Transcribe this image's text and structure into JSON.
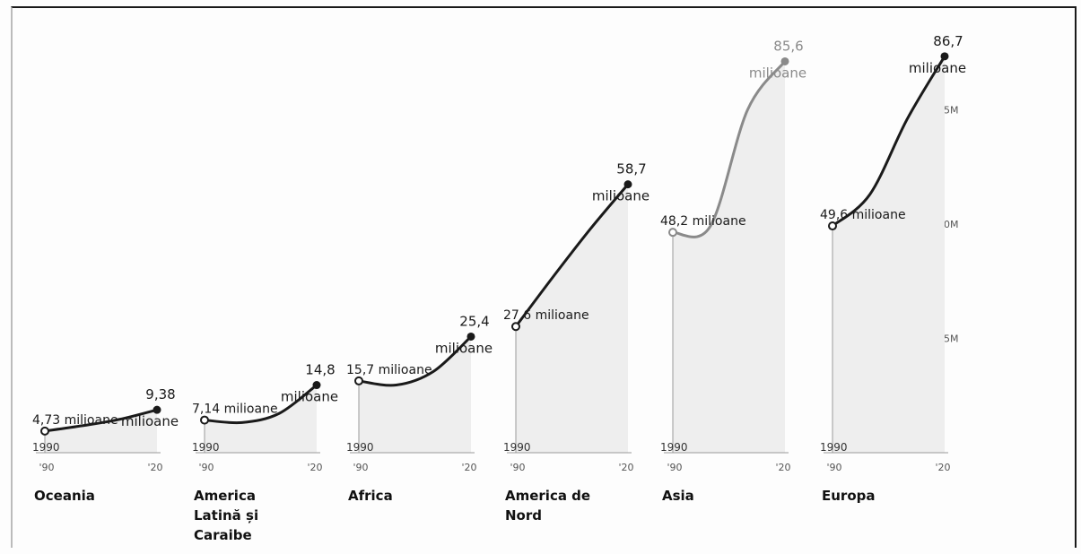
{
  "chart_data": {
    "type": "line",
    "title": "",
    "unit_word": "milioane",
    "start_year": "1990",
    "x_ticks": [
      "'90",
      "'20"
    ],
    "y_axis_ticks": [
      "75M",
      "50M",
      "25M"
    ],
    "y_range": [
      0,
      90
    ],
    "series": [
      {
        "name": "Oceania",
        "start_label": "4,73 milioane",
        "end_value_text": "9,38",
        "end_unit": "milioane",
        "x": [
          1990,
          2000,
          2010,
          2020
        ],
        "values": [
          4.73,
          5.9,
          7.3,
          9.38
        ],
        "color": "#1a1a1a"
      },
      {
        "name": "America Latină și Caraibe",
        "name_lines": [
          "America",
          "Latină și",
          "Caraibe"
        ],
        "start_label": "7,14 milioane",
        "end_value_text": "14,8",
        "end_unit": "milioane",
        "x": [
          1990,
          2000,
          2010,
          2020
        ],
        "values": [
          7.14,
          6.6,
          8.6,
          14.8
        ],
        "color": "#1a1a1a"
      },
      {
        "name": "Africa",
        "start_label": "15,7 milioane",
        "end_value_text": "25,4",
        "end_unit": "milioane",
        "x": [
          1990,
          2000,
          2010,
          2020
        ],
        "values": [
          15.7,
          14.8,
          17.8,
          25.4
        ],
        "color": "#1a1a1a"
      },
      {
        "name": "America de Nord",
        "name_lines": [
          "America de",
          "Nord"
        ],
        "start_label": "27,6 milioane",
        "end_value_text": "58,7",
        "end_unit": "milioane",
        "x": [
          1990,
          2000,
          2010,
          2020
        ],
        "values": [
          27.6,
          38.5,
          49.0,
          58.7
        ],
        "color": "#1a1a1a"
      },
      {
        "name": "Asia",
        "start_label": "48,2 milioane",
        "end_value_text": "85,6",
        "end_unit": "milioane",
        "x": [
          1990,
          2000,
          2010,
          2020
        ],
        "values": [
          48.2,
          49.5,
          75.0,
          85.6
        ],
        "color": "#8a8a8a"
      },
      {
        "name": "Europa",
        "start_label": "49,6 milioane",
        "end_value_text": "86,7",
        "end_unit": "milioane",
        "x": [
          1990,
          2000,
          2010,
          2020
        ],
        "values": [
          49.6,
          56.5,
          73.0,
          86.7
        ],
        "color": "#1a1a1a"
      }
    ]
  }
}
